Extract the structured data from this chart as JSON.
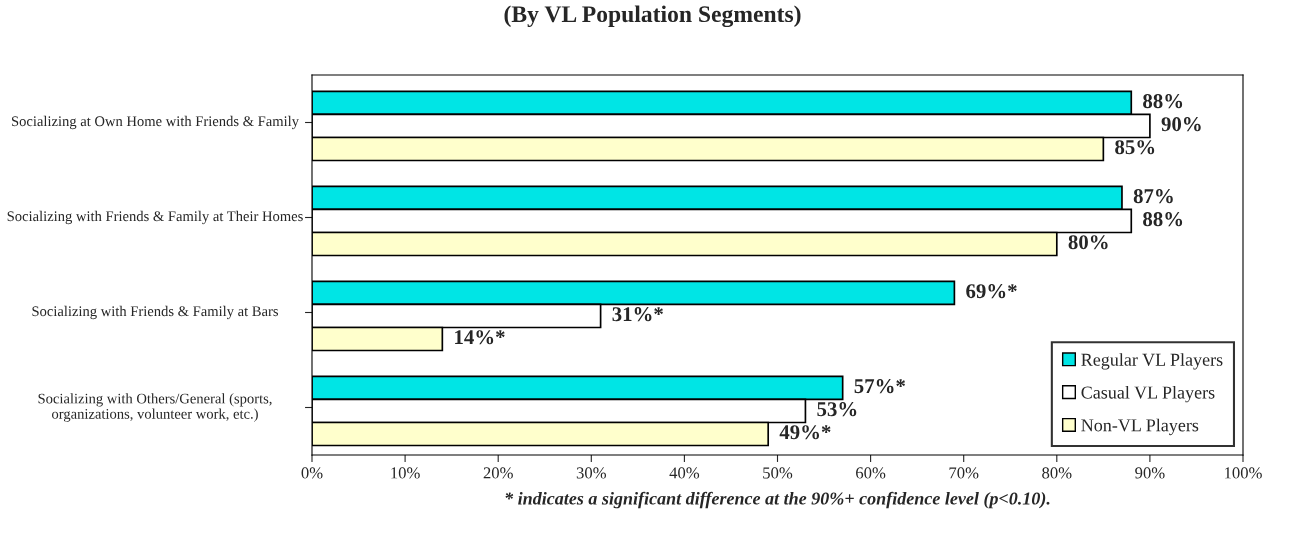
{
  "chart_data": {
    "type": "bar",
    "orientation": "horizontal",
    "title": "(By VL Population Segments)",
    "categories": [
      "Socializing at Own Home with Friends & Family",
      "Socializing with Friends & Family at Their Homes",
      "Socializing with Friends & Family at Bars",
      "Socializing with Others/General (sports, organizations, volunteer work, etc.)"
    ],
    "series": [
      {
        "name": "Regular VL Players",
        "color": "#00e5e5",
        "values": [
          88,
          87,
          69,
          57
        ],
        "value_labels": [
          "88%",
          "87%",
          "69%*",
          "57%*"
        ]
      },
      {
        "name": "Casual VL Players",
        "color": "#ffffff",
        "values": [
          90,
          88,
          31,
          53
        ],
        "value_labels": [
          "90%",
          "88%",
          "31%*",
          "53%"
        ]
      },
      {
        "name": "Non-VL Players",
        "color": "#ffffcc",
        "values": [
          85,
          80,
          14,
          49
        ],
        "value_labels": [
          "85%",
          "80%",
          "14%*",
          "49%*"
        ]
      }
    ],
    "xlim": [
      0,
      100
    ],
    "xticks": [
      {
        "value": 0,
        "label": "0%"
      },
      {
        "value": 10,
        "label": "10%"
      },
      {
        "value": 20,
        "label": "20%"
      },
      {
        "value": 30,
        "label": "30%"
      },
      {
        "value": 40,
        "label": "40%"
      },
      {
        "value": 50,
        "label": "50%"
      },
      {
        "value": 60,
        "label": "60%"
      },
      {
        "value": 70,
        "label": "70%"
      },
      {
        "value": 80,
        "label": "80%"
      },
      {
        "value": 90,
        "label": "90%"
      },
      {
        "value": 100,
        "label": "100%"
      }
    ],
    "annotations": [
      "* indicates a significant difference at the 90%+ confidence level (p<0.10)."
    ],
    "legend": "bottom right",
    "grid": false
  }
}
